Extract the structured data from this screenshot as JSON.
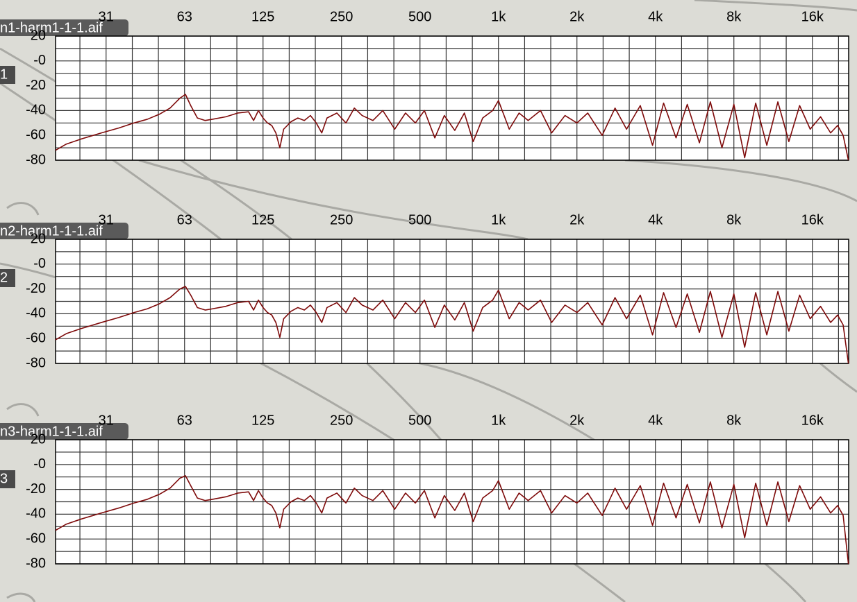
{
  "chart_data": [
    {
      "type": "line",
      "xscale": "log",
      "xlim": [
        20,
        22050
      ],
      "ylim": [
        -80,
        20
      ],
      "grid": true,
      "xticks": [
        {
          "value": 31.25,
          "label": "31"
        },
        {
          "value": 62.5,
          "label": "63"
        },
        125,
        250,
        500,
        {
          "value": 1000,
          "label": "1k"
        },
        {
          "value": 2000,
          "label": "2k"
        },
        {
          "value": 4000,
          "label": "4k"
        },
        {
          "value": 8000,
          "label": "8k"
        },
        {
          "value": 16000,
          "label": "16k"
        }
      ],
      "minor_xticks": [
        24.8,
        39.4,
        49.6,
        78.7,
        99.2,
        157.5,
        198.4,
        315,
        397,
        630,
        794,
        1260,
        1587,
        2520,
        3175,
        5040,
        6350,
        10080,
        12700,
        20160
      ],
      "yticks": [
        20,
        {
          "value": 0,
          "label": "-0"
        },
        -20,
        -40,
        -60,
        -80
      ],
      "minor_yticks": [
        10,
        -10,
        -30,
        -50,
        -70
      ],
      "x": [
        20,
        22,
        25,
        30,
        35,
        40,
        45,
        50,
        55,
        60,
        63,
        66,
        70,
        75,
        80,
        90,
        100,
        110,
        115,
        120,
        125,
        130,
        135,
        140,
        145,
        150,
        160,
        170,
        180,
        190,
        200,
        210,
        220,
        240,
        260,
        280,
        300,
        330,
        360,
        400,
        440,
        480,
        520,
        570,
        620,
        680,
        740,
        800,
        870,
        950,
        1000,
        1100,
        1200,
        1300,
        1450,
        1600,
        1800,
        2000,
        2200,
        2500,
        2800,
        3100,
        3500,
        3900,
        4300,
        4800,
        5300,
        5900,
        6500,
        7200,
        8000,
        8800,
        9700,
        10700,
        11800,
        13000,
        14300,
        15700,
        17200,
        18800,
        20000,
        21000,
        22000
      ],
      "series": [
        {
          "color": "#7e0a0a",
          "values": [
            -72,
            -67,
            -63,
            -58,
            -54,
            -50,
            -47,
            -43,
            -38,
            -30,
            -27,
            -36,
            -46,
            -48,
            -47,
            -45,
            -42,
            -41,
            -48,
            -40,
            -46,
            -50,
            -52,
            -58,
            -70,
            -55,
            -49,
            -46,
            -48,
            -44,
            -50,
            -58,
            -46,
            -42,
            -50,
            -38,
            -44,
            -48,
            -40,
            -55,
            -42,
            -50,
            -40,
            -62,
            -44,
            -56,
            -42,
            -65,
            -46,
            -40,
            -32,
            -55,
            -42,
            -48,
            -40,
            -58,
            -44,
            -50,
            -42,
            -60,
            -38,
            -55,
            -36,
            -68,
            -34,
            -62,
            -35,
            -66,
            -33,
            -70,
            -35,
            -78,
            -34,
            -68,
            -33,
            -65,
            -36,
            -55,
            -45,
            -58,
            -52,
            -60,
            -80
          ]
        }
      ]
    },
    {
      "type": "line",
      "xscale": "log",
      "xlim": [
        20,
        22050
      ],
      "ylim": [
        -80,
        20
      ],
      "grid": true,
      "xticks": [
        {
          "value": 31.25,
          "label": "31"
        },
        {
          "value": 62.5,
          "label": "63"
        },
        125,
        250,
        500,
        {
          "value": 1000,
          "label": "1k"
        },
        {
          "value": 2000,
          "label": "2k"
        },
        {
          "value": 4000,
          "label": "4k"
        },
        {
          "value": 8000,
          "label": "8k"
        },
        {
          "value": 16000,
          "label": "16k"
        }
      ],
      "minor_xticks": [
        24.8,
        39.4,
        49.6,
        78.7,
        99.2,
        157.5,
        198.4,
        315,
        397,
        630,
        794,
        1260,
        1587,
        2520,
        3175,
        5040,
        6350,
        10080,
        12700,
        20160
      ],
      "yticks": [
        20,
        {
          "value": 0,
          "label": "-0"
        },
        -20,
        -40,
        -60,
        -80
      ],
      "minor_yticks": [
        10,
        -10,
        -30,
        -50,
        -70
      ],
      "x": [
        20,
        22,
        25,
        30,
        35,
        40,
        45,
        50,
        55,
        60,
        63,
        66,
        70,
        75,
        80,
        90,
        100,
        110,
        115,
        120,
        125,
        130,
        135,
        140,
        145,
        150,
        160,
        170,
        180,
        190,
        200,
        210,
        220,
        240,
        260,
        280,
        300,
        330,
        360,
        400,
        440,
        480,
        520,
        570,
        620,
        680,
        740,
        800,
        870,
        950,
        1000,
        1100,
        1200,
        1300,
        1450,
        1600,
        1800,
        2000,
        2200,
        2500,
        2800,
        3100,
        3500,
        3900,
        4300,
        4800,
        5300,
        5900,
        6500,
        7200,
        8000,
        8800,
        9700,
        10700,
        11800,
        13000,
        14300,
        15700,
        17200,
        18800,
        20000,
        21000,
        22000
      ],
      "series": [
        {
          "color": "#7e0a0a",
          "values": [
            -61,
            -56,
            -52,
            -47,
            -43,
            -39,
            -36,
            -32,
            -27,
            -20,
            -18,
            -25,
            -35,
            -37,
            -36,
            -34,
            -31,
            -30,
            -37,
            -29,
            -35,
            -39,
            -41,
            -47,
            -59,
            -44,
            -38,
            -35,
            -37,
            -33,
            -39,
            -47,
            -35,
            -31,
            -39,
            -27,
            -33,
            -37,
            -29,
            -44,
            -31,
            -39,
            -29,
            -51,
            -33,
            -45,
            -31,
            -54,
            -35,
            -29,
            -21,
            -44,
            -31,
            -37,
            -29,
            -47,
            -33,
            -39,
            -31,
            -49,
            -27,
            -44,
            -25,
            -57,
            -23,
            -51,
            -24,
            -55,
            -22,
            -59,
            -24,
            -67,
            -23,
            -57,
            -22,
            -54,
            -25,
            -44,
            -34,
            -47,
            -41,
            -49,
            -80
          ]
        }
      ]
    },
    {
      "type": "line",
      "xscale": "log",
      "xlim": [
        20,
        22050
      ],
      "ylim": [
        -80,
        20
      ],
      "grid": true,
      "xticks": [
        {
          "value": 31.25,
          "label": "31"
        },
        {
          "value": 62.5,
          "label": "63"
        },
        125,
        250,
        500,
        {
          "value": 1000,
          "label": "1k"
        },
        {
          "value": 2000,
          "label": "2k"
        },
        {
          "value": 4000,
          "label": "4k"
        },
        {
          "value": 8000,
          "label": "8k"
        },
        {
          "value": 16000,
          "label": "16k"
        }
      ],
      "minor_xticks": [
        24.8,
        39.4,
        49.6,
        78.7,
        99.2,
        157.5,
        198.4,
        315,
        397,
        630,
        794,
        1260,
        1587,
        2520,
        3175,
        5040,
        6350,
        10080,
        12700,
        20160
      ],
      "yticks": [
        20,
        {
          "value": 0,
          "label": "-0"
        },
        -20,
        -40,
        -60,
        -80
      ],
      "minor_yticks": [
        10,
        -10,
        -30,
        -50,
        -70
      ],
      "x": [
        20,
        22,
        25,
        30,
        35,
        40,
        45,
        50,
        55,
        60,
        63,
        66,
        70,
        75,
        80,
        90,
        100,
        110,
        115,
        120,
        125,
        130,
        135,
        140,
        145,
        150,
        160,
        170,
        180,
        190,
        200,
        210,
        220,
        240,
        260,
        280,
        300,
        330,
        360,
        400,
        440,
        480,
        520,
        570,
        620,
        680,
        740,
        800,
        870,
        950,
        1000,
        1100,
        1200,
        1300,
        1450,
        1600,
        1800,
        2000,
        2200,
        2500,
        2800,
        3100,
        3500,
        3900,
        4300,
        4800,
        5300,
        5900,
        6500,
        7200,
        8000,
        8800,
        9700,
        10700,
        11800,
        13000,
        14300,
        15700,
        17200,
        18800,
        20000,
        21000,
        22000
      ],
      "series": [
        {
          "color": "#7e0a0a",
          "values": [
            -53,
            -48,
            -44,
            -39,
            -35,
            -31,
            -28,
            -24,
            -19,
            -11,
            -9,
            -17,
            -27,
            -29,
            -28,
            -26,
            -23,
            -22,
            -29,
            -21,
            -27,
            -31,
            -33,
            -39,
            -51,
            -36,
            -30,
            -27,
            -29,
            -25,
            -31,
            -39,
            -27,
            -23,
            -31,
            -19,
            -25,
            -29,
            -21,
            -36,
            -23,
            -31,
            -21,
            -43,
            -25,
            -37,
            -23,
            -46,
            -27,
            -21,
            -13,
            -36,
            -23,
            -29,
            -21,
            -39,
            -25,
            -31,
            -23,
            -41,
            -19,
            -36,
            -17,
            -49,
            -15,
            -43,
            -16,
            -47,
            -14,
            -51,
            -16,
            -59,
            -15,
            -49,
            -14,
            -46,
            -17,
            -36,
            -26,
            -39,
            -33,
            -41,
            -80
          ]
        }
      ]
    }
  ],
  "objects": [
    {
      "label": "n1-harm1-1-1.aif",
      "number": "1"
    },
    {
      "label": "n2-harm1-1-1.aif",
      "number": "2"
    },
    {
      "label": "n3-harm1-1-1.aif",
      "number": "3"
    }
  ]
}
